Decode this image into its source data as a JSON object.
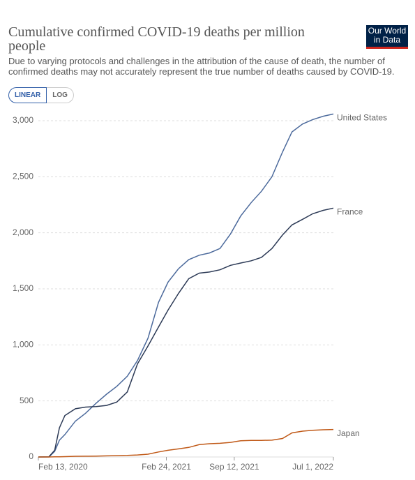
{
  "chart_data": {
    "type": "line",
    "title": "Cumulative confirmed COVID-19 deaths per million people",
    "subtitle": "Due to varying protocols and challenges in the attribution of the cause of death, the number of confirmed deaths may not accurately represent the true number of deaths caused by COVID-19.",
    "controls": [
      "LINEAR",
      "LOG"
    ],
    "logo": [
      "Our World",
      "in Data"
    ],
    "x": [
      "2020-02-13",
      "2020-03-15",
      "2020-04-01",
      "2020-04-15",
      "2020-05-01",
      "2020-06-01",
      "2020-07-01",
      "2020-08-01",
      "2020-09-01",
      "2020-10-01",
      "2020-11-01",
      "2020-12-01",
      "2021-01-01",
      "2021-02-01",
      "2021-03-01",
      "2021-04-01",
      "2021-05-01",
      "2021-06-01",
      "2021-07-01",
      "2021-08-01",
      "2021-09-01",
      "2021-10-01",
      "2021-11-01",
      "2021-12-01",
      "2022-01-01",
      "2022-02-01",
      "2022-03-01",
      "2022-04-01",
      "2022-05-01",
      "2022-06-01",
      "2022-07-01"
    ],
    "series": [
      {
        "name": "United States",
        "color": "#4c6a9c",
        "values": [
          0,
          0,
          50,
          150,
          200,
          320,
          390,
          480,
          560,
          630,
          720,
          860,
          1060,
          1380,
          1560,
          1680,
          1760,
          1800,
          1820,
          1860,
          1990,
          2150,
          2270,
          2370,
          2500,
          2720,
          2900,
          2970,
          3010,
          3040,
          3060
        ]
      },
      {
        "name": "France",
        "color": "#2c3a56",
        "values": [
          0,
          1,
          60,
          260,
          370,
          430,
          445,
          450,
          460,
          490,
          580,
          830,
          990,
          1160,
          1310,
          1460,
          1590,
          1640,
          1650,
          1670,
          1710,
          1730,
          1750,
          1780,
          1860,
          1980,
          2070,
          2120,
          2170,
          2200,
          2220
        ]
      },
      {
        "name": "Japan",
        "color": "#c05917",
        "values": [
          0,
          0,
          1,
          1,
          3,
          6,
          7,
          8,
          10,
          12,
          14,
          18,
          25,
          45,
          60,
          72,
          85,
          110,
          118,
          122,
          130,
          145,
          148,
          148,
          150,
          165,
          215,
          230,
          238,
          243,
          245
        ]
      }
    ],
    "xlim": [
      "2020-02-13",
      "2022-07-01"
    ],
    "xticks": [
      {
        "value": "2020-02-13",
        "label": "Feb 13, 2020"
      },
      {
        "value": "2021-02-24",
        "label": "Feb 24, 2021"
      },
      {
        "value": "2021-09-12",
        "label": "Sep 12, 2021"
      },
      {
        "value": "2022-07-01",
        "label": "Jul 1, 2022"
      }
    ],
    "ylim": [
      0,
      3000
    ],
    "yticks": [
      0,
      500,
      {
        "value": 1000,
        "label": "1,000"
      },
      {
        "value": 1500,
        "label": "1,500"
      },
      {
        "value": 2000,
        "label": "2,000"
      },
      {
        "value": 2500,
        "label": "2,500"
      },
      {
        "value": 3000,
        "label": "3,000"
      }
    ],
    "grid": true
  }
}
